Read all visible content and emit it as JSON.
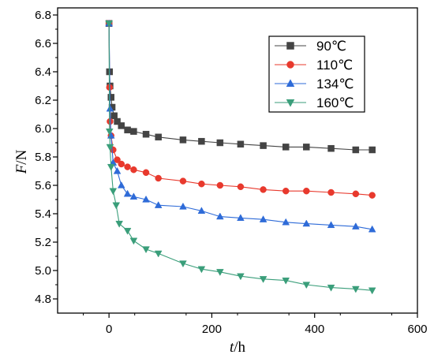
{
  "chart_data": {
    "type": "line",
    "xlim": [
      -100,
      600
    ],
    "ylim": [
      4.7,
      6.85
    ],
    "x_ticks": [
      0,
      200,
      400,
      600
    ],
    "y_ticks": [
      4.8,
      5.0,
      5.2,
      5.4,
      5.6,
      5.8,
      6.0,
      6.2,
      6.4,
      6.6,
      6.8
    ],
    "x_tick_labels": [
      "0",
      "200",
      "400",
      "600"
    ],
    "y_tick_labels": [
      "4.8",
      "5.0",
      "5.2",
      "5.4",
      "5.6",
      "5.8",
      "6.0",
      "6.2",
      "6.4",
      "6.6",
      "6.8"
    ],
    "xlabel_italic": "t",
    "xlabel_unit": "/h",
    "ylabel_italic": "F",
    "ylabel_unit": "/N",
    "legend_position": "top-right",
    "grid": false,
    "series": [
      {
        "name": "90℃",
        "color": "#444444",
        "marker": "square",
        "points": [
          [
            0,
            6.74
          ],
          [
            1,
            6.4
          ],
          [
            2,
            6.3
          ],
          [
            4,
            6.22
          ],
          [
            6,
            6.15
          ],
          [
            10,
            6.09
          ],
          [
            16,
            6.05
          ],
          [
            24,
            6.02
          ],
          [
            36,
            5.99
          ],
          [
            48,
            5.98
          ],
          [
            72,
            5.96
          ],
          [
            96,
            5.94
          ],
          [
            144,
            5.92
          ],
          [
            180,
            5.91
          ],
          [
            216,
            5.9
          ],
          [
            256,
            5.89
          ],
          [
            300,
            5.88
          ],
          [
            344,
            5.87
          ],
          [
            384,
            5.87
          ],
          [
            432,
            5.86
          ],
          [
            480,
            5.85
          ],
          [
            512,
            5.85
          ]
        ]
      },
      {
        "name": "110℃",
        "color": "#e8392d",
        "marker": "circle",
        "points": [
          [
            0,
            6.74
          ],
          [
            1,
            6.29
          ],
          [
            2,
            6.05
          ],
          [
            4,
            5.95
          ],
          [
            8,
            5.85
          ],
          [
            16,
            5.78
          ],
          [
            24,
            5.75
          ],
          [
            36,
            5.73
          ],
          [
            48,
            5.71
          ],
          [
            72,
            5.69
          ],
          [
            96,
            5.65
          ],
          [
            144,
            5.63
          ],
          [
            180,
            5.61
          ],
          [
            216,
            5.6
          ],
          [
            256,
            5.59
          ],
          [
            300,
            5.57
          ],
          [
            344,
            5.56
          ],
          [
            384,
            5.56
          ],
          [
            432,
            5.55
          ],
          [
            480,
            5.54
          ],
          [
            512,
            5.53
          ]
        ]
      },
      {
        "name": "134℃",
        "color": "#2e6bd8",
        "marker": "triangle-up",
        "points": [
          [
            0,
            6.74
          ],
          [
            2,
            6.14
          ],
          [
            4,
            5.95
          ],
          [
            8,
            5.76
          ],
          [
            16,
            5.7
          ],
          [
            24,
            5.6
          ],
          [
            36,
            5.54
          ],
          [
            48,
            5.52
          ],
          [
            72,
            5.5
          ],
          [
            96,
            5.46
          ],
          [
            144,
            5.45
          ],
          [
            180,
            5.42
          ],
          [
            216,
            5.38
          ],
          [
            256,
            5.37
          ],
          [
            300,
            5.36
          ],
          [
            344,
            5.34
          ],
          [
            384,
            5.33
          ],
          [
            432,
            5.32
          ],
          [
            480,
            5.31
          ],
          [
            512,
            5.29
          ]
        ]
      },
      {
        "name": "160℃",
        "color": "#3a9e7a",
        "marker": "triangle-down",
        "points": [
          [
            0,
            6.74
          ],
          [
            1,
            5.98
          ],
          [
            2,
            5.87
          ],
          [
            4,
            5.73
          ],
          [
            8,
            5.56
          ],
          [
            14,
            5.46
          ],
          [
            20,
            5.33
          ],
          [
            36,
            5.28
          ],
          [
            48,
            5.21
          ],
          [
            72,
            5.15
          ],
          [
            96,
            5.12
          ],
          [
            144,
            5.05
          ],
          [
            180,
            5.01
          ],
          [
            216,
            4.99
          ],
          [
            256,
            4.96
          ],
          [
            300,
            4.94
          ],
          [
            344,
            4.93
          ],
          [
            384,
            4.9
          ],
          [
            432,
            4.88
          ],
          [
            480,
            4.87
          ],
          [
            512,
            4.86
          ]
        ]
      }
    ]
  }
}
